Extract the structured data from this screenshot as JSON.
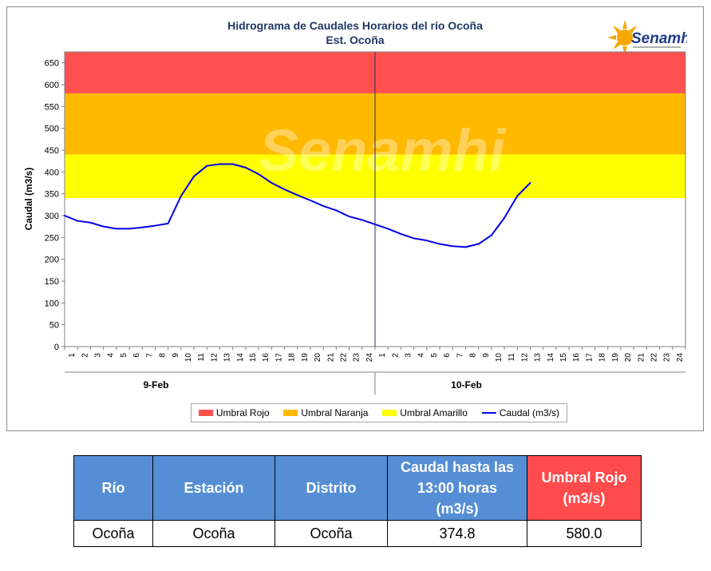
{
  "chart_data": {
    "type": "line",
    "title": "Hidrograma de Caudales Horarios del río Ocoña",
    "subtitle": "Est. Ocoña",
    "ylabel": "Caudal  (m3/s)",
    "ylim": [
      0,
      675
    ],
    "yticks": [
      0,
      50,
      100,
      150,
      200,
      250,
      300,
      350,
      400,
      450,
      500,
      550,
      600,
      650
    ],
    "x_tick_labels": [
      "1",
      "2",
      "3",
      "4",
      "5",
      "6",
      "7",
      "8",
      "9",
      "10",
      "11",
      "12",
      "13",
      "14",
      "15",
      "16",
      "17",
      "18",
      "19",
      "20",
      "21",
      "22",
      "23",
      "24",
      "1",
      "2",
      "3",
      "4",
      "5",
      "6",
      "7",
      "8",
      "9",
      "10",
      "11",
      "12",
      "13",
      "14",
      "15",
      "16",
      "17",
      "18",
      "19",
      "20",
      "21",
      "22",
      "23",
      "24"
    ],
    "day_labels": [
      "9-Feb",
      "10-Feb"
    ],
    "thresholds": [
      {
        "name": "Umbral Rojo",
        "from": 580,
        "to": 675,
        "color": "#ff4f4f"
      },
      {
        "name": "Umbral Naranja",
        "from": 440,
        "to": 580,
        "color": "#ffb900"
      },
      {
        "name": "Umbral Amarillo",
        "from": 340,
        "to": 440,
        "color": "#ffff00"
      }
    ],
    "series": [
      {
        "name": "Caudal (m3/s)",
        "color": "#0000e6",
        "x": [
          0,
          1,
          2,
          3,
          4,
          5,
          6,
          7,
          8,
          9,
          10,
          11,
          12,
          13,
          14,
          15,
          16,
          17,
          18,
          19,
          20,
          21,
          22,
          23,
          24,
          25,
          26,
          27,
          28,
          29,
          30,
          31,
          32,
          33,
          34,
          35,
          36
        ],
        "values": [
          300,
          288,
          284,
          275,
          270,
          270,
          273,
          277,
          282,
          345,
          390,
          414,
          418,
          418,
          410,
          395,
          375,
          360,
          347,
          335,
          322,
          312,
          298,
          290,
          280,
          270,
          258,
          248,
          243,
          235,
          230,
          228,
          235,
          255,
          295,
          345,
          375
        ]
      }
    ],
    "grid": false,
    "legend_position": "bottom"
  },
  "logo": {
    "text": "Senamhi",
    "watermark": "Senamhi"
  },
  "table": {
    "headers": [
      "Río",
      "Estación",
      "Distrito",
      "Caudal hasta las 13:00 horas (m3/s)",
      "Umbral  Rojo (m3/s)"
    ],
    "row": [
      "Ocoña",
      "Ocoña",
      "Ocoña",
      "374.8",
      "580.0"
    ]
  },
  "colors": {
    "header_blue": "#558ed5",
    "header_red": "#ff4b4b",
    "line": "#0000e6"
  }
}
